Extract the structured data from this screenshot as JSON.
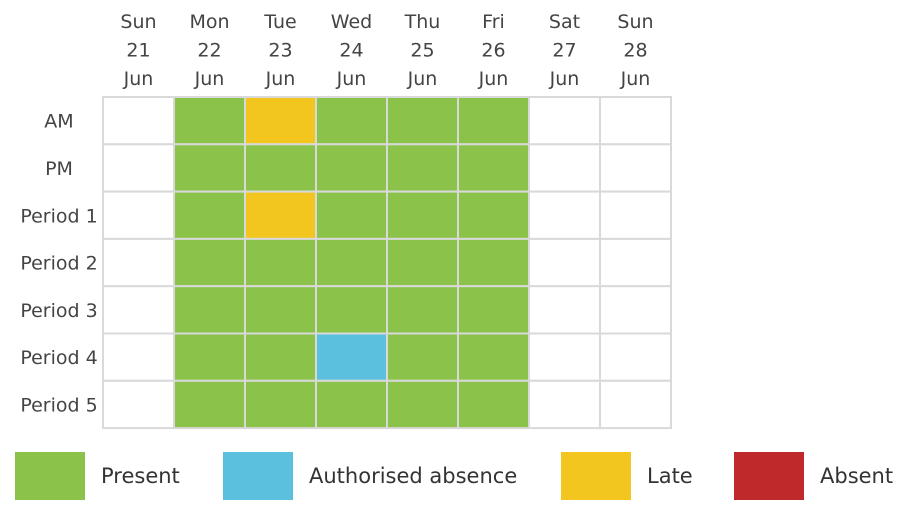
{
  "chart_data": {
    "type": "heatmap",
    "columns": [
      {
        "weekday": "Sun",
        "day": "21",
        "month": "Jun"
      },
      {
        "weekday": "Mon",
        "day": "22",
        "month": "Jun"
      },
      {
        "weekday": "Tue",
        "day": "23",
        "month": "Jun"
      },
      {
        "weekday": "Wed",
        "day": "24",
        "month": "Jun"
      },
      {
        "weekday": "Thu",
        "day": "25",
        "month": "Jun"
      },
      {
        "weekday": "Fri",
        "day": "26",
        "month": "Jun"
      },
      {
        "weekday": "Sat",
        "day": "27",
        "month": "Jun"
      },
      {
        "weekday": "Sun",
        "day": "28",
        "month": "Jun"
      }
    ],
    "rows": [
      "AM",
      "PM",
      "Period 1",
      "Period 2",
      "Period 3",
      "Period 4",
      "Period 5"
    ],
    "cells": [
      [
        null,
        "present",
        "late",
        "present",
        "present",
        "present",
        null,
        null
      ],
      [
        null,
        "present",
        "present",
        "present",
        "present",
        "present",
        null,
        null
      ],
      [
        null,
        "present",
        "late",
        "present",
        "present",
        "present",
        null,
        null
      ],
      [
        null,
        "present",
        "present",
        "present",
        "present",
        "present",
        null,
        null
      ],
      [
        null,
        "present",
        "present",
        "present",
        "present",
        "present",
        null,
        null
      ],
      [
        null,
        "present",
        "present",
        "authorised",
        "present",
        "present",
        null,
        null
      ],
      [
        null,
        "present",
        "present",
        "present",
        "present",
        "present",
        null,
        null
      ]
    ],
    "legend": [
      {
        "key": "present",
        "label": "Present",
        "color": "#8bc34a"
      },
      {
        "key": "authorised",
        "label": "Authorised absence",
        "color": "#5bc0de"
      },
      {
        "key": "late",
        "label": "Late",
        "color": "#f2c61f"
      },
      {
        "key": "absent",
        "label": "Absent",
        "color": "#c0292b"
      }
    ],
    "empty_color": "#ffffff",
    "grid_color": "#d9d9d9"
  }
}
